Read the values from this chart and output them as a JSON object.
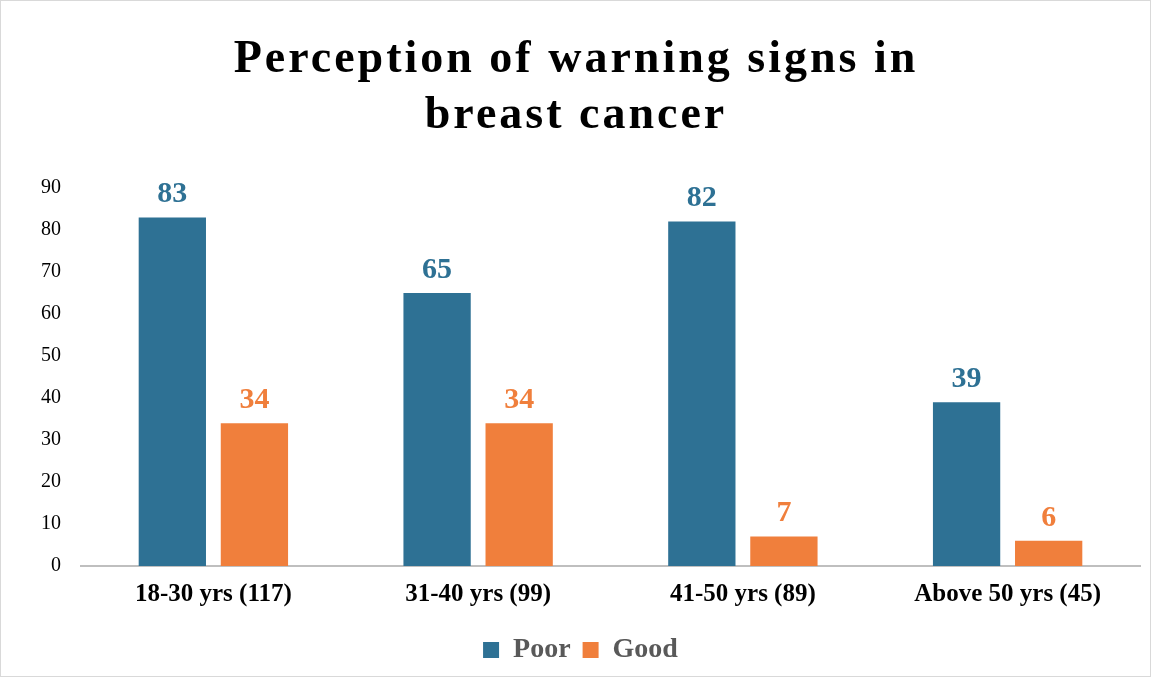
{
  "chart_data": {
    "type": "bar",
    "title": "Perception of warning signs in breast cancer",
    "categories": [
      "18-30 yrs (117)",
      "31-40 yrs (99)",
      "41-50 yrs (89)",
      "Above 50 yrs (45)"
    ],
    "series": [
      {
        "name": "Poor",
        "color": "#2e7194",
        "values": [
          83,
          65,
          82,
          39
        ]
      },
      {
        "name": "Good",
        "color": "#f07f3c",
        "values": [
          34,
          34,
          7,
          6
        ]
      }
    ],
    "ylim": [
      0,
      90
    ],
    "yticks": [
      0,
      10,
      20,
      30,
      40,
      50,
      60,
      70,
      80,
      90
    ],
    "grid": false,
    "legend": "bottom",
    "data_labels": true
  }
}
